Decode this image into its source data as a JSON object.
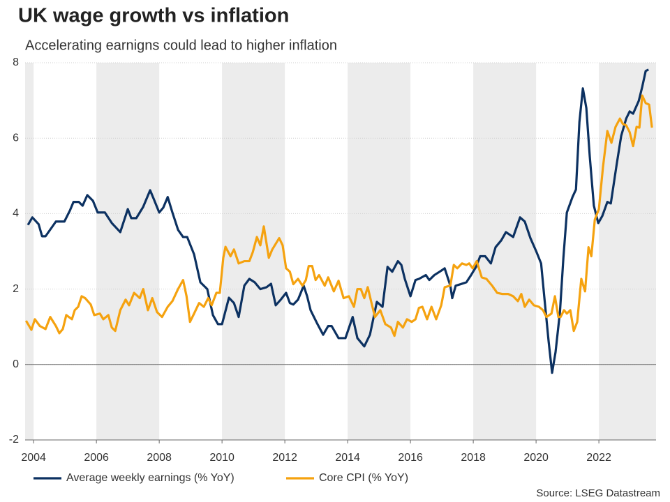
{
  "chart_data": {
    "type": "line",
    "title": "UK wage growth vs inflation",
    "subtitle": "Accelerating earnigns could lead to higher inflation",
    "source": "Source: LSEG Datastream",
    "xlim": [
      2003.73,
      2023.82
    ],
    "xticks": [
      2004,
      2006,
      2008,
      2010,
      2012,
      2014,
      2016,
      2018,
      2020,
      2022
    ],
    "ylim": [
      -2,
      8
    ],
    "yticks": [
      -2,
      0,
      2,
      4,
      6,
      8
    ],
    "grid": true,
    "legend": "bottom",
    "series": [
      {
        "name": "Average weekly earnings (% YoY)",
        "color": "#0c3161",
        "x": [
          2003.82,
          2003.96,
          2004.16,
          2004.27,
          2004.38,
          2004.71,
          2004.98,
          2005.16,
          2005.27,
          2005.44,
          2005.56,
          2005.71,
          2005.89,
          2006.04,
          2006.27,
          2006.49,
          2006.76,
          2007.0,
          2007.11,
          2007.27,
          2007.49,
          2007.71,
          2007.82,
          2008.0,
          2008.13,
          2008.27,
          2008.42,
          2008.6,
          2008.76,
          2008.89,
          2009.11,
          2009.31,
          2009.53,
          2009.71,
          2009.87,
          2010.0,
          2010.22,
          2010.38,
          2010.53,
          2010.71,
          2010.87,
          2011.04,
          2011.22,
          2011.42,
          2011.56,
          2011.71,
          2011.87,
          2012.04,
          2012.16,
          2012.27,
          2012.42,
          2012.6,
          2012.71,
          2012.82,
          2013.04,
          2013.22,
          2013.38,
          2013.49,
          2013.71,
          2013.93,
          2014.16,
          2014.31,
          2014.53,
          2014.71,
          2014.93,
          2015.11,
          2015.27,
          2015.42,
          2015.6,
          2015.71,
          2015.82,
          2016.0,
          2016.16,
          2016.27,
          2016.49,
          2016.6,
          2016.76,
          2016.93,
          2017.09,
          2017.27,
          2017.33,
          2017.44,
          2017.6,
          2017.78,
          2017.93,
          2018.09,
          2018.22,
          2018.38,
          2018.56,
          2018.71,
          2018.89,
          2019.04,
          2019.27,
          2019.49,
          2019.64,
          2019.82,
          2020.0,
          2020.16,
          2020.27,
          2020.4,
          2020.51,
          2020.62,
          2020.76,
          2020.87,
          2020.98,
          2021.16,
          2021.27,
          2021.38,
          2021.49,
          2021.6,
          2021.71,
          2021.84,
          2021.98,
          2022.11,
          2022.27,
          2022.38,
          2022.56,
          2022.71,
          2022.87,
          2022.98,
          2023.09,
          2023.27,
          2023.38,
          2023.49,
          2023.58
        ],
        "values": [
          3.7,
          3.9,
          3.72,
          3.4,
          3.4,
          3.79,
          3.79,
          4.09,
          4.31,
          4.31,
          4.21,
          4.49,
          4.34,
          4.03,
          4.03,
          3.75,
          3.51,
          4.12,
          3.88,
          3.88,
          4.18,
          4.62,
          4.4,
          4.03,
          4.16,
          4.44,
          4.03,
          3.57,
          3.38,
          3.38,
          2.92,
          2.18,
          2.0,
          1.31,
          1.07,
          1.07,
          1.77,
          1.63,
          1.26,
          2.09,
          2.27,
          2.18,
          2.0,
          2.05,
          2.14,
          1.57,
          1.72,
          1.9,
          1.63,
          1.59,
          1.72,
          2.09,
          1.81,
          1.44,
          1.07,
          0.79,
          1.02,
          1.02,
          0.7,
          0.7,
          1.26,
          0.7,
          0.48,
          0.79,
          1.66,
          1.53,
          2.59,
          2.46,
          2.74,
          2.64,
          2.27,
          1.81,
          2.24,
          2.27,
          2.37,
          2.24,
          2.37,
          2.46,
          2.55,
          2.09,
          1.76,
          2.09,
          2.13,
          2.18,
          2.37,
          2.59,
          2.87,
          2.87,
          2.68,
          3.11,
          3.29,
          3.51,
          3.38,
          3.9,
          3.79,
          3.35,
          3.01,
          2.68,
          1.72,
          0.61,
          -0.22,
          0.33,
          1.39,
          2.83,
          4.03,
          4.44,
          4.64,
          6.43,
          7.32,
          6.8,
          5.51,
          4.21,
          3.75,
          3.94,
          4.31,
          4.27,
          5.27,
          6.06,
          6.52,
          6.71,
          6.65,
          6.99,
          7.36,
          7.78,
          7.82
        ]
      },
      {
        "name": "Core CPI (% YoY)",
        "color": "#f5a20f",
        "x": [
          2003.76,
          2003.93,
          2004.04,
          2004.2,
          2004.38,
          2004.53,
          2004.71,
          2004.82,
          2004.93,
          2005.04,
          2005.22,
          2005.31,
          2005.42,
          2005.53,
          2005.64,
          2005.82,
          2005.93,
          2006.11,
          2006.22,
          2006.38,
          2006.49,
          2006.6,
          2006.76,
          2006.93,
          2007.04,
          2007.2,
          2007.38,
          2007.49,
          2007.64,
          2007.78,
          2007.93,
          2008.09,
          2008.27,
          2008.42,
          2008.6,
          2008.76,
          2008.87,
          2008.98,
          2009.11,
          2009.27,
          2009.42,
          2009.56,
          2009.67,
          2009.82,
          2009.93,
          2010.04,
          2010.11,
          2010.27,
          2010.38,
          2010.53,
          2010.71,
          2010.87,
          2010.98,
          2011.11,
          2011.22,
          2011.33,
          2011.49,
          2011.6,
          2011.71,
          2011.82,
          2011.93,
          2012.04,
          2012.16,
          2012.27,
          2012.42,
          2012.56,
          2012.67,
          2012.76,
          2012.87,
          2012.98,
          2013.09,
          2013.27,
          2013.38,
          2013.56,
          2013.71,
          2013.87,
          2014.04,
          2014.2,
          2014.31,
          2014.42,
          2014.53,
          2014.64,
          2014.76,
          2014.87,
          2015.04,
          2015.2,
          2015.38,
          2015.49,
          2015.6,
          2015.76,
          2015.89,
          2016.04,
          2016.16,
          2016.27,
          2016.38,
          2016.53,
          2016.67,
          2016.82,
          2016.98,
          2017.09,
          2017.27,
          2017.38,
          2017.49,
          2017.64,
          2017.78,
          2017.87,
          2017.98,
          2018.11,
          2018.27,
          2018.42,
          2018.6,
          2018.76,
          2018.93,
          2019.11,
          2019.27,
          2019.42,
          2019.53,
          2019.64,
          2019.78,
          2019.93,
          2020.09,
          2020.22,
          2020.33,
          2020.49,
          2020.6,
          2020.71,
          2020.78,
          2020.89,
          2020.98,
          2021.09,
          2021.2,
          2021.31,
          2021.44,
          2021.56,
          2021.67,
          2021.76,
          2021.87,
          2022.0,
          2022.13,
          2022.27,
          2022.4,
          2022.53,
          2022.67,
          2022.76,
          2022.87,
          2022.98,
          2023.09,
          2023.2,
          2023.29,
          2023.38,
          2023.49,
          2023.6,
          2023.69
        ],
        "values": [
          1.16,
          0.92,
          1.2,
          1.02,
          0.94,
          1.26,
          1.02,
          0.83,
          0.94,
          1.31,
          1.2,
          1.44,
          1.53,
          1.81,
          1.76,
          1.59,
          1.31,
          1.35,
          1.2,
          1.31,
          0.98,
          0.89,
          1.44,
          1.72,
          1.57,
          1.9,
          1.76,
          2.0,
          1.44,
          1.76,
          1.39,
          1.26,
          1.53,
          1.68,
          2.0,
          2.24,
          1.81,
          1.13,
          1.35,
          1.63,
          1.53,
          1.76,
          1.57,
          1.9,
          1.9,
          2.83,
          3.12,
          2.87,
          3.05,
          2.68,
          2.74,
          2.74,
          2.98,
          3.38,
          3.16,
          3.66,
          2.83,
          3.05,
          3.2,
          3.35,
          3.16,
          2.55,
          2.46,
          2.13,
          2.27,
          2.09,
          2.24,
          2.61,
          2.61,
          2.24,
          2.37,
          2.09,
          2.31,
          1.94,
          2.22,
          1.76,
          1.81,
          1.53,
          2.0,
          2.0,
          1.76,
          2.05,
          1.63,
          1.26,
          1.44,
          1.07,
          0.98,
          0.76,
          1.13,
          0.98,
          1.2,
          1.13,
          1.2,
          1.5,
          1.53,
          1.2,
          1.53,
          1.2,
          1.57,
          2.05,
          2.09,
          2.64,
          2.55,
          2.68,
          2.64,
          2.68,
          2.55,
          2.74,
          2.31,
          2.27,
          2.09,
          1.9,
          1.87,
          1.87,
          1.81,
          1.68,
          1.87,
          1.53,
          1.72,
          1.57,
          1.53,
          1.44,
          1.26,
          1.35,
          1.81,
          1.26,
          1.26,
          1.44,
          1.35,
          1.44,
          0.89,
          1.13,
          2.27,
          1.94,
          3.11,
          2.87,
          3.84,
          4.12,
          5.23,
          6.19,
          5.88,
          6.3,
          6.52,
          6.38,
          6.34,
          6.16,
          5.79,
          6.3,
          6.28,
          7.13,
          6.93,
          6.89,
          6.28
        ]
      }
    ]
  }
}
